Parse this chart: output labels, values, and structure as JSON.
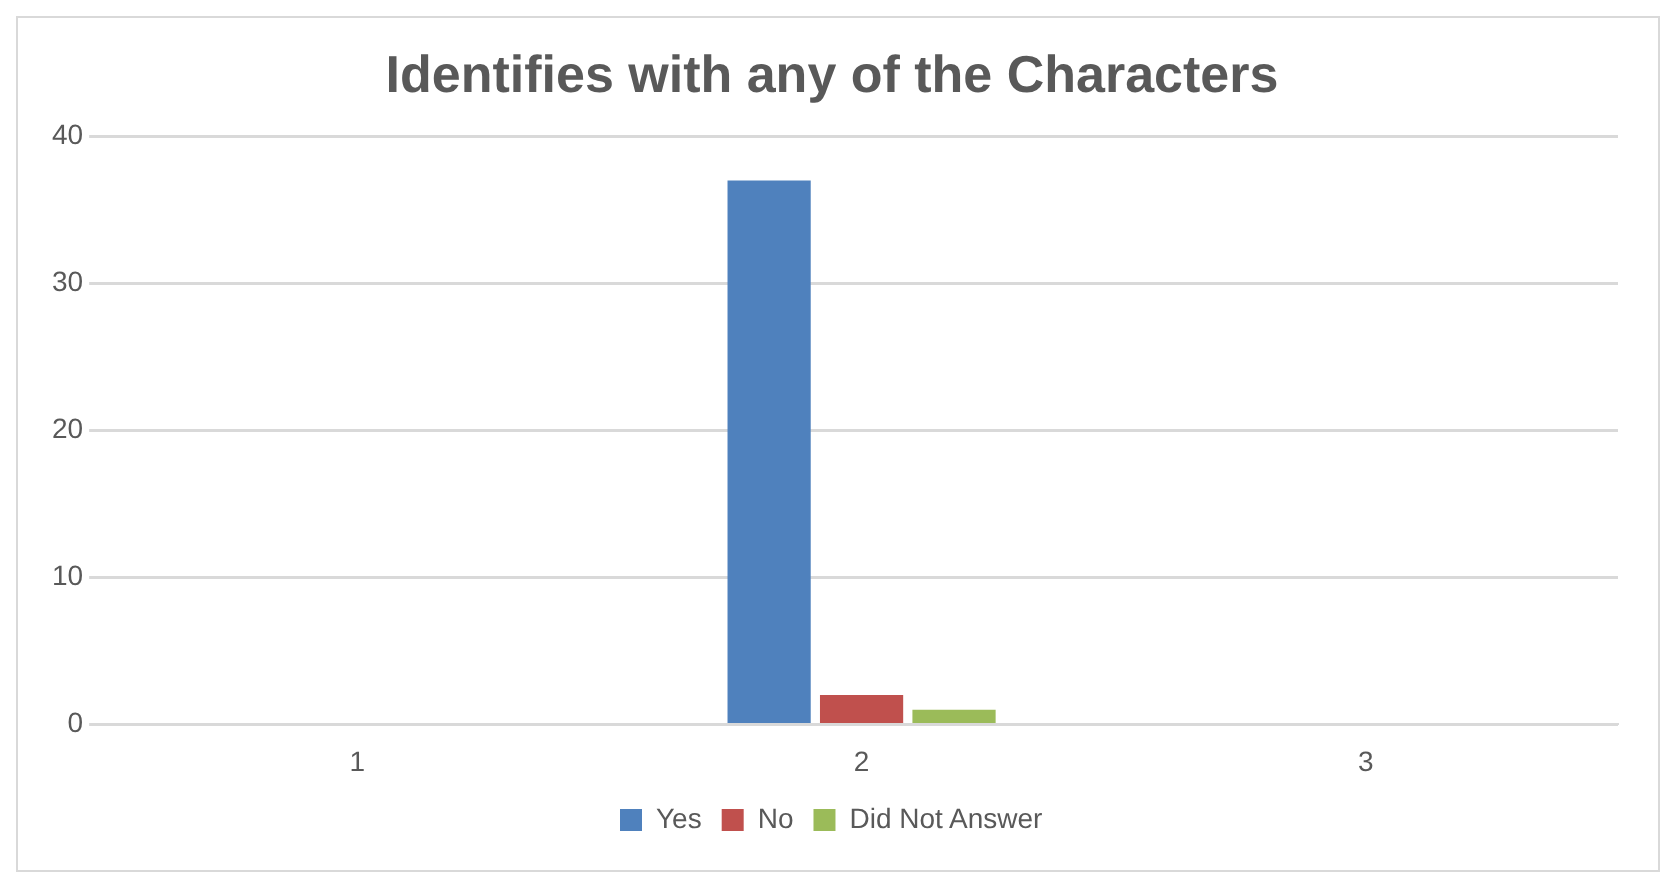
{
  "chart_data": {
    "type": "bar",
    "title": "Identifies with any of the Characters",
    "categories": [
      "1",
      "2",
      "3"
    ],
    "series": [
      {
        "name": "Yes",
        "color": "#4f81bd",
        "values": [
          0,
          37,
          0
        ]
      },
      {
        "name": "No",
        "color": "#c0504d",
        "values": [
          0,
          2,
          0
        ]
      },
      {
        "name": "Did Not Answer",
        "color": "#9bbb59",
        "values": [
          0,
          1,
          0
        ]
      }
    ],
    "ylim": [
      0,
      40
    ],
    "yticks": [
      0,
      10,
      20,
      30,
      40
    ],
    "grid": "y",
    "legend": "bottom"
  }
}
